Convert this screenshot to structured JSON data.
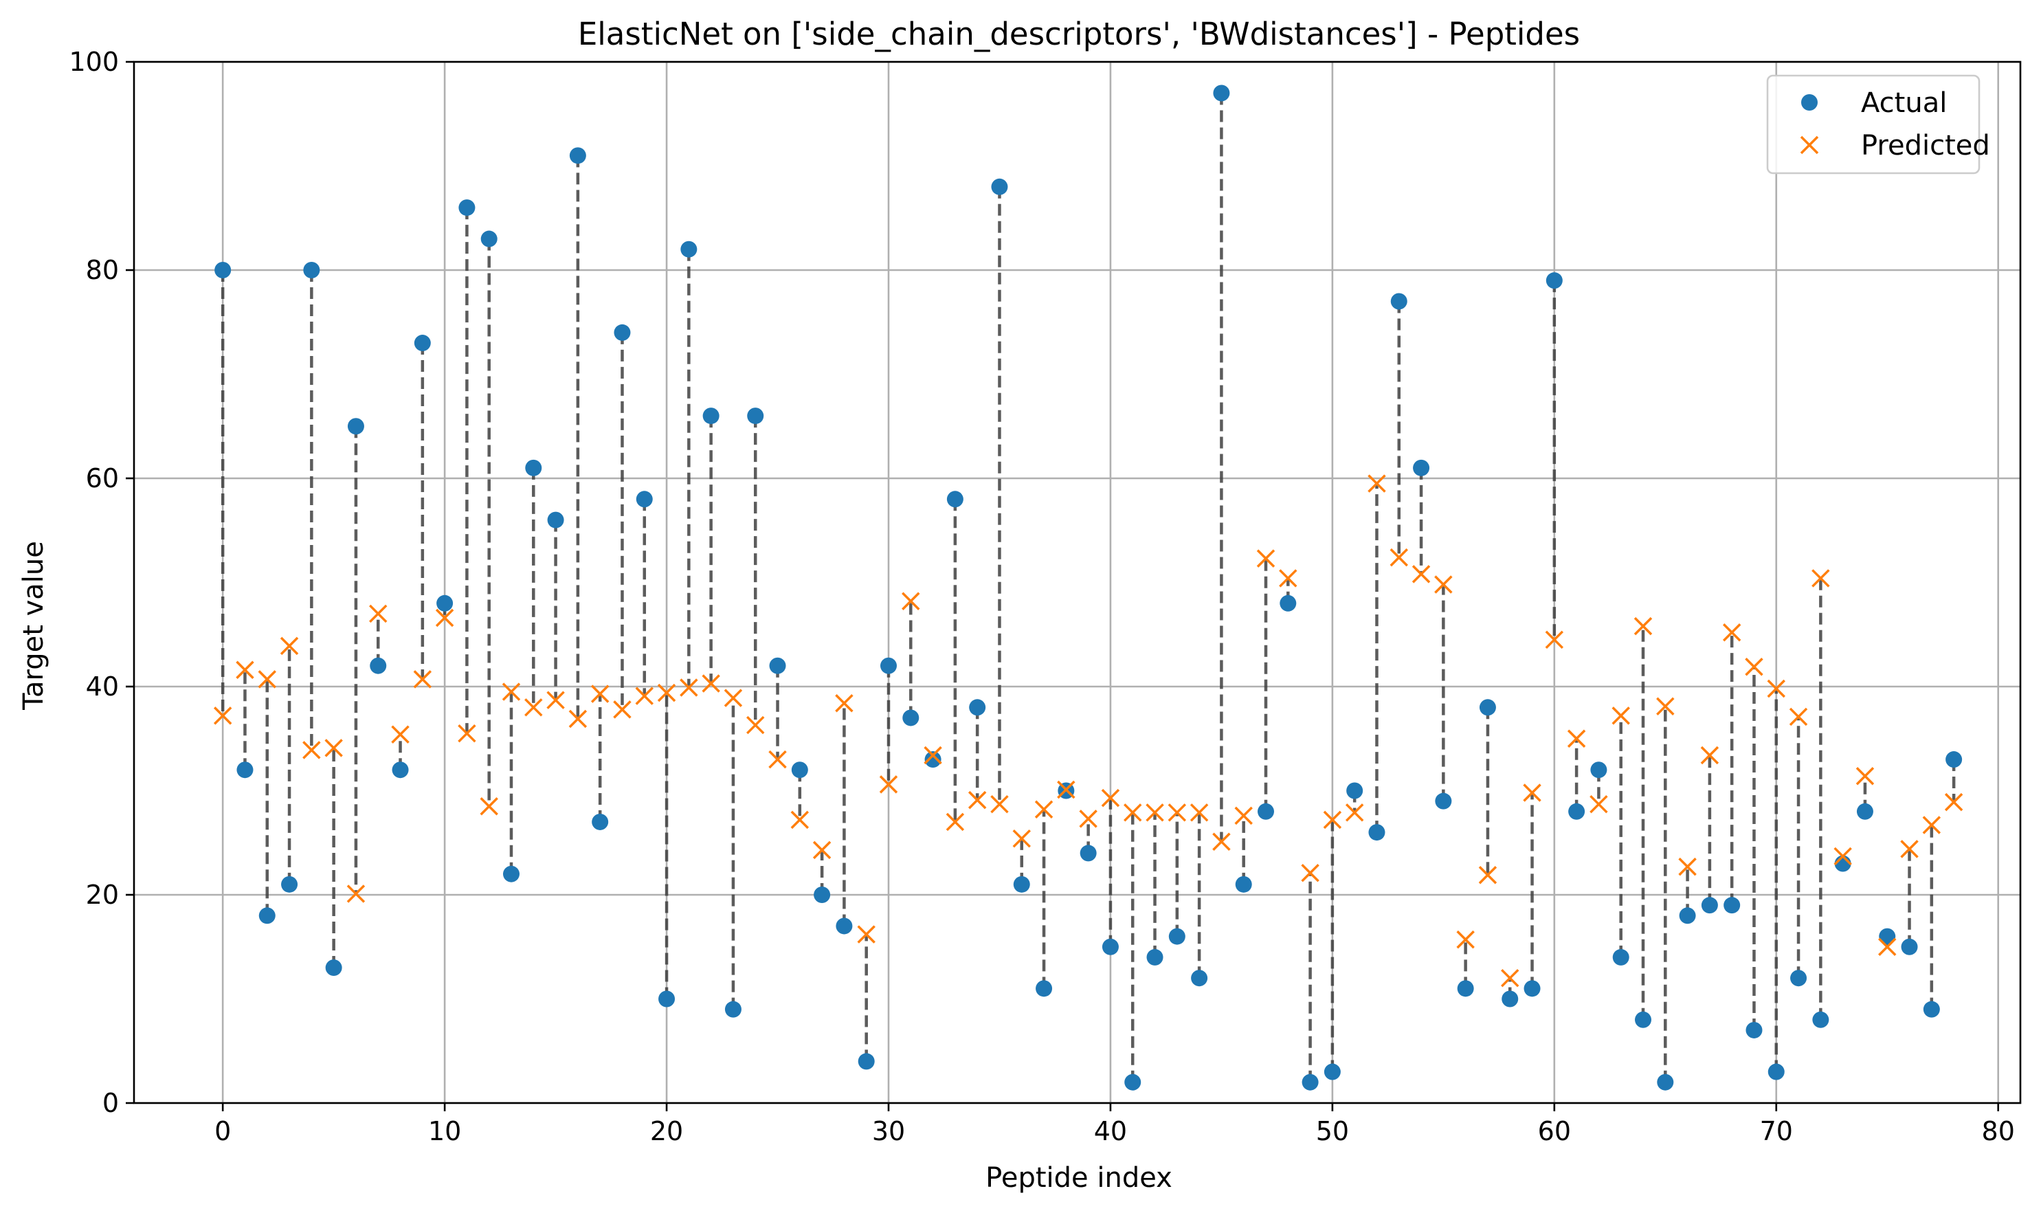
{
  "chart_data": {
    "type": "scatter",
    "title": "ElasticNet on ['side_chain_descriptors', 'BWdistances'] - Peptides",
    "xlabel": "Peptide index",
    "ylabel": "Target value",
    "xlim": [
      -4,
      81
    ],
    "ylim": [
      0,
      100
    ],
    "xticks": [
      0,
      10,
      20,
      30,
      40,
      50,
      60,
      70,
      80
    ],
    "yticks": [
      0,
      20,
      40,
      60,
      80,
      100
    ],
    "grid": true,
    "legend_position": "top-right",
    "x": [
      0,
      1,
      2,
      3,
      4,
      5,
      6,
      7,
      8,
      9,
      10,
      11,
      12,
      13,
      14,
      15,
      16,
      17,
      18,
      19,
      20,
      21,
      22,
      23,
      24,
      25,
      26,
      27,
      28,
      29,
      30,
      31,
      32,
      33,
      34,
      35,
      36,
      37,
      38,
      39,
      40,
      41,
      42,
      43,
      44,
      45,
      46,
      47,
      48,
      49,
      50,
      51,
      52,
      53,
      54,
      55,
      56,
      57,
      58,
      59,
      60,
      61,
      62,
      63,
      64,
      65,
      66,
      67,
      68,
      69,
      70,
      71,
      72,
      73,
      74,
      75,
      76,
      77,
      78
    ],
    "series": [
      {
        "name": "Actual",
        "marker": "circle",
        "color": "#1f77b4",
        "values": [
          80,
          32,
          18,
          21,
          80,
          13,
          65,
          42,
          32,
          73,
          48,
          86,
          83,
          22,
          61,
          56,
          91,
          27,
          74,
          58,
          10,
          82,
          66,
          9,
          66,
          42,
          32,
          20,
          17,
          4,
          42,
          37,
          33,
          58,
          38,
          88,
          21,
          11,
          30,
          24,
          15,
          2,
          14,
          16,
          12,
          97,
          21,
          28,
          48,
          2,
          3,
          30,
          26,
          77,
          61,
          29,
          11,
          38,
          10,
          11,
          79,
          28,
          32,
          14,
          8,
          2,
          18,
          19,
          19,
          7,
          3,
          12,
          8,
          23,
          28,
          16,
          15,
          9,
          33
        ]
      },
      {
        "name": "Predicted",
        "marker": "x",
        "color": "#ff7f0e",
        "values": [
          37.2,
          41.6,
          40.7,
          43.9,
          33.9,
          34.1,
          20.1,
          47.0,
          35.4,
          40.7,
          46.6,
          35.5,
          28.5,
          39.5,
          38.0,
          38.7,
          36.9,
          39.3,
          37.8,
          39.1,
          39.4,
          39.9,
          40.3,
          38.9,
          36.3,
          33.0,
          27.2,
          24.3,
          38.4,
          16.2,
          30.6,
          48.2,
          33.4,
          27.0,
          29.1,
          28.7,
          25.4,
          28.2,
          30.1,
          27.3,
          29.3,
          27.9,
          27.9,
          27.9,
          27.9,
          25.1,
          27.6,
          52.3,
          50.4,
          22.1,
          27.2,
          27.9,
          59.5,
          52.4,
          50.8,
          49.8,
          15.7,
          21.9,
          12.0,
          29.8,
          44.5,
          35.0,
          28.7,
          37.2,
          45.8,
          38.1,
          22.7,
          33.4,
          45.2,
          41.9,
          39.8,
          37.1,
          50.4,
          23.7,
          31.4,
          15.0,
          24.4,
          26.7,
          28.9
        ]
      }
    ]
  }
}
